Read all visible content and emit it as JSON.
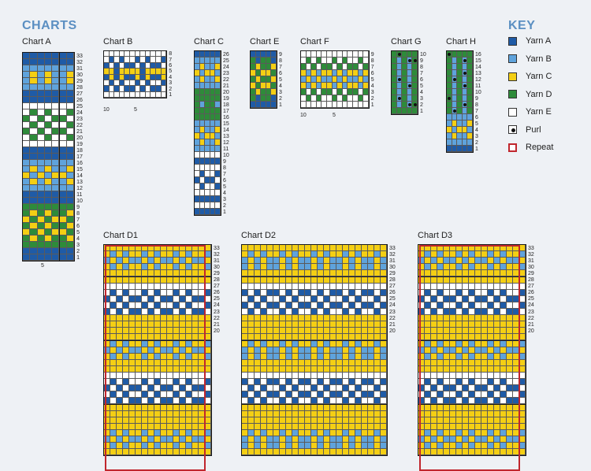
{
  "title": "CHARTS",
  "key": {
    "heading": "KEY",
    "items": [
      {
        "id": "A",
        "label": "Yarn A",
        "color": "#1f5ba6",
        "type": "color"
      },
      {
        "id": "B",
        "label": "Yarn B",
        "color": "#5fa3dc",
        "type": "color"
      },
      {
        "id": "C",
        "label": "Yarn C",
        "color": "#f4cf14",
        "type": "color"
      },
      {
        "id": "D",
        "label": "Yarn D",
        "color": "#2e8b3a",
        "type": "color"
      },
      {
        "id": "E",
        "label": "Yarn E",
        "color": "#ffffff",
        "type": "color"
      },
      {
        "id": "P",
        "label": "Purl",
        "color": "#ffffff",
        "type": "purl"
      },
      {
        "id": "R",
        "label": "Repeat",
        "color": "#c0262d",
        "type": "repeat"
      }
    ]
  },
  "charts": [
    {
      "name": "Chart A",
      "label": "Chart A",
      "rows": 33,
      "cols": 7,
      "col_marks": [
        "5"
      ],
      "row_pattern": [
        "A",
        "A",
        "B",
        "BCBCB",
        "BCBCB",
        "B",
        "A",
        "A",
        "E",
        "EDEDE",
        "DEDED",
        "EDEDE",
        "DEDED",
        "EDEDE",
        "E",
        "A",
        "A",
        "B",
        "BCBCB",
        "CBCBC",
        "BCBCB",
        "B",
        "A",
        "A",
        "D",
        "DCDCD",
        "CDCDC",
        "DCDCD",
        "CDCDC",
        "DCDCD",
        "D",
        "A",
        "A"
      ]
    },
    {
      "name": "Chart B",
      "label": "Chart B",
      "rows": 8,
      "cols": 12,
      "col_marks": [
        "10",
        "5"
      ],
      "row_pattern": [
        "E",
        "EAEAE",
        "AEAEA",
        "CCACC",
        "ACACA",
        "EAEAE",
        "AEAEA",
        "E"
      ]
    },
    {
      "name": "Chart C",
      "label": "Chart C",
      "rows": 26,
      "cols": 5,
      "col_marks": [],
      "row_pattern": [
        "A",
        "B",
        "BCB",
        "CBC",
        "BCB",
        "B",
        "D",
        "D",
        "DBD",
        "D",
        "D",
        "B",
        "BCB",
        "CBC",
        "BCB",
        "B",
        "E",
        "A",
        "E",
        "EAE",
        "AEA",
        "EAE",
        "E",
        "A",
        "E",
        "A"
      ]
    },
    {
      "name": "Chart E",
      "label": "Chart E",
      "rows": 9,
      "cols": 5,
      "col_marks": [],
      "row_pattern": [
        "A",
        "DAD",
        "DCD",
        "CDC",
        "DCD",
        "CDC",
        "DCD",
        "DAD",
        "A"
      ]
    },
    {
      "name": "Chart F",
      "label": "Chart F",
      "rows": 9,
      "cols": 13,
      "col_marks": [
        "10",
        "5"
      ],
      "row_pattern": [
        "E",
        "EDEDE",
        "DEDED",
        "CBCBC",
        "BCBCB",
        "CBCBC",
        "DEDED",
        "EDEDE",
        "E"
      ]
    },
    {
      "name": "Chart G",
      "label": "Chart G",
      "rows": 10,
      "cols": 5,
      "col_marks": [],
      "row_pattern": [
        "D",
        "DB",
        "DB",
        "DB",
        "DB",
        "DB",
        "DB",
        "DB",
        "DB",
        "D"
      ],
      "purls": [
        [
          0,
          1
        ],
        [
          1,
          3
        ],
        [
          1,
          4
        ],
        [
          4,
          1
        ],
        [
          5,
          3
        ],
        [
          7,
          1
        ],
        [
          8,
          3
        ],
        [
          8,
          4
        ]
      ]
    },
    {
      "name": "Chart H",
      "label": "Chart H",
      "rows": 16,
      "cols": 5,
      "col_marks": [],
      "row_pattern": [
        "D",
        "DB",
        "DB",
        "DB",
        "DB",
        "DB",
        "DB",
        "DB",
        "DB",
        "DB",
        "B",
        "BCB",
        "CBC",
        "BCB",
        "B",
        "A"
      ],
      "purls": [
        [
          0,
          0
        ],
        [
          1,
          3
        ],
        [
          3,
          3
        ],
        [
          4,
          1
        ],
        [
          5,
          3
        ],
        [
          7,
          0
        ],
        [
          8,
          3
        ],
        [
          9,
          1
        ]
      ]
    },
    {
      "name": "Chart D1",
      "label": "Chart D1",
      "rows": 33,
      "cols": 17,
      "col_marks": [],
      "row_pattern": [
        "C",
        "CBCBC",
        "BCBCB",
        "CBCBC",
        "C",
        "C",
        "E",
        "EAEAE",
        "AEAEA",
        "EAEAE",
        "AEAEA",
        "C",
        "C",
        "C"
      ],
      "repeat": true
    },
    {
      "name": "Chart D2",
      "label": "Chart D2",
      "rows": 33,
      "cols": 23,
      "col_marks": [],
      "row_pattern": [
        "C",
        "CBCBC",
        "BCBCB",
        "BCBCB",
        "C",
        "C",
        "E",
        "AEAEA",
        "EAEAE",
        "AEAEA",
        "EAEAE",
        "C",
        "C",
        "C"
      ],
      "repeat": false
    },
    {
      "name": "Chart D3",
      "label": "Chart D3",
      "rows": 33,
      "cols": 17,
      "col_marks": [],
      "row_pattern": [
        "C",
        "CBCBC",
        "BCBCB",
        "CBCBC",
        "C",
        "C",
        "E",
        "EAEAE",
        "AEAEA",
        "EAEAE",
        "AEAEA",
        "C",
        "C",
        "C"
      ],
      "repeat": true
    }
  ]
}
